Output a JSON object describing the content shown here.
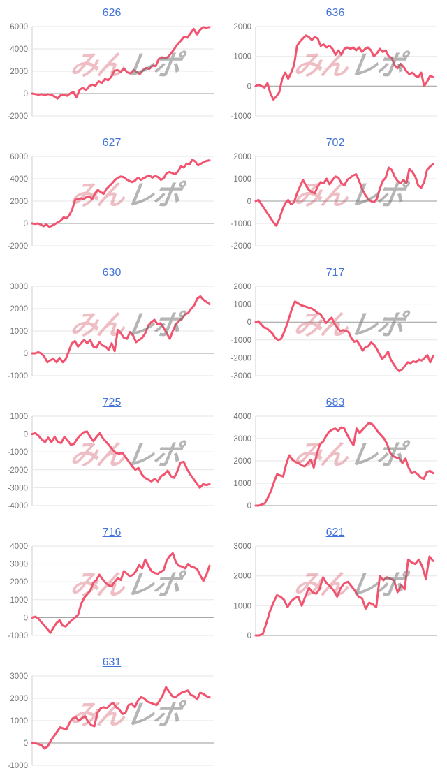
{
  "page": {
    "background": "#ffffff"
  },
  "style": {
    "line_color": "#f2536f",
    "title_color": "#4273d8",
    "tick_color": "#757575",
    "grid_color": "#e6e6e6",
    "zero_line_color": "#999999",
    "axis_line_color": "#cfcfcf",
    "line_width": 3
  },
  "watermark": {
    "pink_text": "みん",
    "gray_text": "レポ"
  },
  "chart_data": [
    {
      "type": "line",
      "title": "626",
      "ylim": [
        -2000,
        6000
      ],
      "yticks": [
        6000,
        4000,
        2000,
        0,
        -2000
      ],
      "legend": "none",
      "grid": true,
      "values": [
        0,
        -50,
        -100,
        -50,
        -150,
        -50,
        -100,
        -250,
        -450,
        -150,
        -100,
        -200,
        0,
        150,
        -350,
        350,
        500,
        300,
        650,
        800,
        700,
        1100,
        950,
        1300,
        1200,
        1500,
        2050,
        2100,
        1950,
        2250,
        1900,
        1800,
        2100,
        1950,
        1750,
        2100,
        2300,
        2200,
        2500,
        2450,
        3100,
        3250,
        3150,
        3300,
        3650,
        4050,
        4450,
        4750,
        5100,
        5000,
        5400,
        5800,
        5300,
        5700,
        5950,
        5900,
        5950
      ]
    },
    {
      "type": "line",
      "title": "636",
      "ylim": [
        -1000,
        2000
      ],
      "yticks": [
        2000,
        1000,
        0,
        -1000
      ],
      "legend": "none",
      "grid": true,
      "values": [
        0,
        50,
        0,
        -50,
        100,
        -250,
        -450,
        -350,
        -200,
        250,
        450,
        250,
        450,
        700,
        1350,
        1500,
        1600,
        1700,
        1650,
        1550,
        1650,
        1600,
        1350,
        1400,
        1300,
        1350,
        1250,
        1050,
        1200,
        1050,
        1250,
        1300,
        1250,
        1300,
        1200,
        1300,
        1150,
        1250,
        1300,
        1200,
        1000,
        1100,
        1250,
        1150,
        1200,
        1000,
        950,
        700,
        600,
        750,
        650,
        500,
        400,
        450,
        350,
        300,
        450,
        0,
        150,
        350,
        300
      ]
    },
    {
      "type": "line",
      "title": "627",
      "ylim": [
        -2000,
        6000
      ],
      "yticks": [
        6000,
        4000,
        2000,
        0,
        -2000
      ],
      "legend": "none",
      "grid": true,
      "values": [
        0,
        -50,
        0,
        -100,
        -250,
        -100,
        -300,
        -200,
        -50,
        100,
        250,
        550,
        450,
        750,
        1250,
        2100,
        2200,
        2250,
        2200,
        2350,
        2400,
        2200,
        2700,
        3000,
        2800,
        2650,
        3100,
        3350,
        3600,
        3900,
        4100,
        4200,
        4150,
        3950,
        3800,
        3700,
        3850,
        4100,
        3900,
        4050,
        4200,
        4300,
        4100,
        4250,
        4150,
        3900,
        4050,
        4500,
        4600,
        4500,
        4400,
        4650,
        5100,
        5000,
        5350,
        5300,
        5700,
        5550,
        5200,
        5350,
        5500,
        5600,
        5650
      ]
    },
    {
      "type": "line",
      "title": "702",
      "ylim": [
        -2000,
        2000
      ],
      "yticks": [
        2000,
        1000,
        0,
        -1000,
        -2000
      ],
      "legend": "none",
      "grid": true,
      "values": [
        0,
        50,
        -150,
        -350,
        -550,
        -750,
        -950,
        -1100,
        -800,
        -400,
        -100,
        50,
        -150,
        -50,
        350,
        650,
        950,
        700,
        500,
        400,
        350,
        650,
        850,
        800,
        1000,
        750,
        950,
        1100,
        1050,
        800,
        700,
        950,
        1050,
        1150,
        1200,
        900,
        550,
        300,
        100,
        0,
        -50,
        100,
        550,
        900,
        1050,
        1500,
        1400,
        1100,
        900,
        800,
        950,
        800,
        1450,
        1300,
        1100,
        700,
        600,
        850,
        1400,
        1550,
        1650
      ]
    },
    {
      "type": "line",
      "title": "630",
      "ylim": [
        -1000,
        3000
      ],
      "yticks": [
        3000,
        2000,
        1000,
        0,
        -1000
      ],
      "legend": "none",
      "grid": true,
      "values": [
        0,
        0,
        50,
        0,
        -150,
        -400,
        -300,
        -250,
        -400,
        -200,
        -400,
        -250,
        100,
        450,
        550,
        300,
        450,
        600,
        450,
        600,
        300,
        250,
        500,
        350,
        300,
        150,
        450,
        100,
        1050,
        900,
        700,
        650,
        950,
        800,
        500,
        600,
        700,
        900,
        1250,
        1400,
        1500,
        1300,
        1350,
        1150,
        900,
        650,
        1000,
        1300,
        1450,
        1550,
        1750,
        1800,
        2000,
        2150,
        2450,
        2550,
        2400,
        2300,
        2200
      ]
    },
    {
      "type": "line",
      "title": "717",
      "ylim": [
        -3000,
        2000
      ],
      "yticks": [
        2000,
        1000,
        0,
        -1000,
        -2000,
        -3000
      ],
      "legend": "none",
      "grid": true,
      "values": [
        0,
        50,
        -150,
        -300,
        -350,
        -500,
        -650,
        -900,
        -1000,
        -950,
        -600,
        -200,
        300,
        800,
        1150,
        1050,
        950,
        900,
        850,
        800,
        750,
        650,
        500,
        450,
        200,
        -50,
        100,
        250,
        -100,
        -300,
        -500,
        -450,
        -500,
        -550,
        -900,
        -1100,
        -1050,
        -1300,
        -1600,
        -1400,
        -1350,
        -1150,
        -1250,
        -1500,
        -1800,
        -2050,
        -1900,
        -1650,
        -2100,
        -2350,
        -2600,
        -2750,
        -2650,
        -2450,
        -2250,
        -2300,
        -2200,
        -2250,
        -2100,
        -2150,
        -2000,
        -1850,
        -2250,
        -1900
      ]
    },
    {
      "type": "line",
      "title": "725",
      "ylim": [
        -4000,
        1000
      ],
      "yticks": [
        1000,
        0,
        -1000,
        -2000,
        -3000,
        -4000
      ],
      "legend": "none",
      "grid": true,
      "values": [
        0,
        50,
        -100,
        -300,
        -450,
        -200,
        -450,
        -150,
        -450,
        -500,
        -150,
        -350,
        -600,
        -550,
        -250,
        -50,
        100,
        150,
        -150,
        -400,
        -150,
        50,
        -250,
        -450,
        -650,
        -900,
        -1050,
        -1100,
        -1050,
        -1300,
        -1550,
        -1800,
        -2000,
        -1900,
        -2250,
        -2450,
        -2550,
        -2650,
        -2500,
        -2650,
        -2350,
        -2250,
        -2050,
        -2350,
        -2450,
        -2100,
        -1600,
        -1550,
        -1950,
        -2250,
        -2500,
        -2750,
        -3000,
        -2800,
        -2850,
        -2800
      ]
    },
    {
      "type": "line",
      "title": "683",
      "ylim": [
        0,
        4000
      ],
      "yticks": [
        4000,
        3000,
        2000,
        1000,
        0
      ],
      "legend": "none",
      "grid": true,
      "values": [
        0,
        0,
        50,
        100,
        350,
        650,
        1050,
        1400,
        1350,
        1300,
        1850,
        2250,
        2050,
        1950,
        1900,
        1800,
        1750,
        1900,
        2050,
        1700,
        2300,
        2750,
        2850,
        3100,
        3300,
        3400,
        3450,
        3350,
        3500,
        3450,
        3150,
        2900,
        2700,
        3450,
        3250,
        3400,
        3550,
        3700,
        3650,
        3500,
        3300,
        3150,
        3000,
        2750,
        2350,
        2200,
        2150,
        2100,
        1900,
        2100,
        1700,
        1450,
        1500,
        1400,
        1250,
        1200,
        1500,
        1550,
        1450
      ]
    },
    {
      "type": "line",
      "title": "716",
      "ylim": [
        -1000,
        4000
      ],
      "yticks": [
        4000,
        3000,
        2000,
        1000,
        0,
        -1000
      ],
      "legend": "none",
      "grid": true,
      "values": [
        0,
        50,
        -50,
        -250,
        -450,
        -650,
        -850,
        -550,
        -300,
        -150,
        -450,
        -500,
        -300,
        -150,
        0,
        150,
        750,
        1100,
        1300,
        1500,
        1950,
        2100,
        2400,
        2150,
        1950,
        1800,
        1750,
        2000,
        2200,
        2100,
        2600,
        2450,
        2300,
        2400,
        2600,
        2950,
        2750,
        3250,
        2900,
        2600,
        2500,
        2450,
        2550,
        2650,
        3200,
        3450,
        3600,
        3100,
        2900,
        2850,
        2750,
        3000,
        2850,
        2800,
        2700,
        2350,
        2050,
        2400,
        2900
      ]
    },
    {
      "type": "line",
      "title": "621",
      "ylim": [
        0,
        3000
      ],
      "yticks": [
        3000,
        2000,
        1000,
        0
      ],
      "legend": "none",
      "grid": true,
      "values": [
        0,
        0,
        50,
        400,
        800,
        1100,
        1350,
        1300,
        1200,
        950,
        1150,
        1250,
        1300,
        1000,
        1300,
        1600,
        1450,
        1400,
        1550,
        1950,
        1750,
        1650,
        1500,
        1300,
        1600,
        1750,
        1800,
        1650,
        1500,
        1300,
        1250,
        900,
        1100,
        1050,
        950,
        2000,
        1850,
        1950,
        1900,
        1850,
        1450,
        1700,
        1550,
        2550,
        2450,
        2400,
        2550,
        2300,
        1900,
        2650,
        2500
      ]
    },
    {
      "type": "line",
      "title": "631",
      "ylim": [
        -1000,
        3000
      ],
      "yticks": [
        3000,
        2000,
        1000,
        0,
        -1000
      ],
      "legend": "none",
      "grid": true,
      "values": [
        0,
        0,
        -50,
        -100,
        -250,
        -150,
        100,
        300,
        500,
        700,
        650,
        600,
        900,
        1100,
        1150,
        1000,
        1100,
        1200,
        950,
        800,
        750,
        1350,
        1550,
        1600,
        1550,
        1700,
        1800,
        1600,
        1500,
        1300,
        1350,
        1700,
        1750,
        1600,
        1900,
        2050,
        2000,
        1850,
        1800,
        1750,
        1700,
        1900,
        2150,
        2500,
        2300,
        2100,
        2050,
        2150,
        2250,
        2300,
        2350,
        2150,
        2100,
        1950,
        2250,
        2200,
        2100,
        2050
      ]
    }
  ]
}
